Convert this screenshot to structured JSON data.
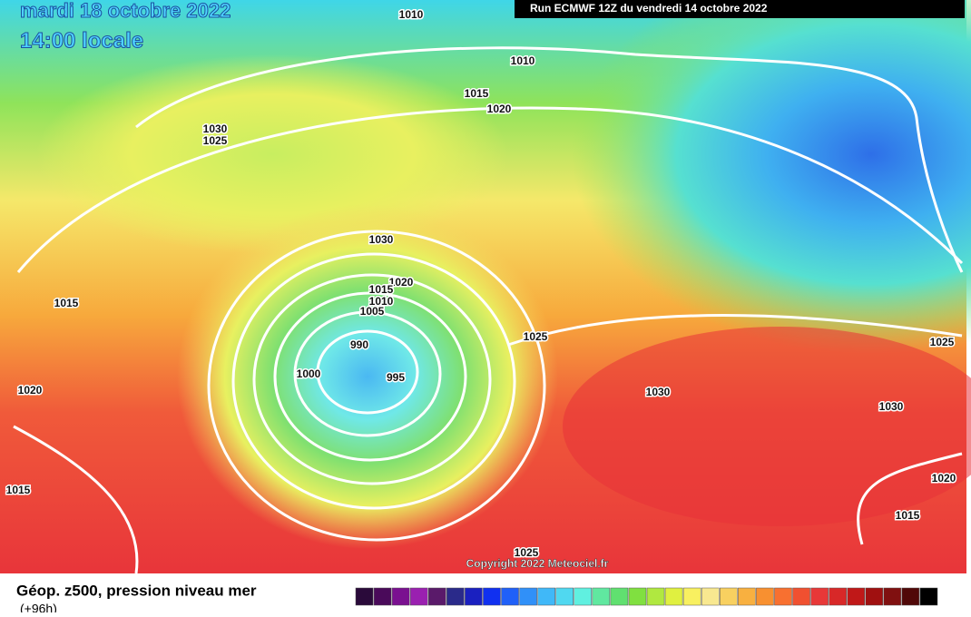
{
  "header": {
    "date": "mardi 18 octobre 2022",
    "time": "14:00 locale",
    "run": "Run ECMWF 12Z du vendredi 14 octobre 2022"
  },
  "isobar_labels": [
    "1010",
    "1010",
    "1015",
    "1020",
    "1030",
    "1025",
    "1030",
    "1020",
    "1015",
    "1010",
    "1005",
    "990",
    "1000",
    "995",
    "1025",
    "1030",
    "1015",
    "1020",
    "1015",
    "1025",
    "1030",
    "1020",
    "1015",
    "1025"
  ],
  "footer": {
    "copyright": "Copyright 2022 Meteociel.fr"
  },
  "legend": {
    "title": "Géop. z500, pression niveau mer",
    "subtitle": "(+96h)"
  }
}
